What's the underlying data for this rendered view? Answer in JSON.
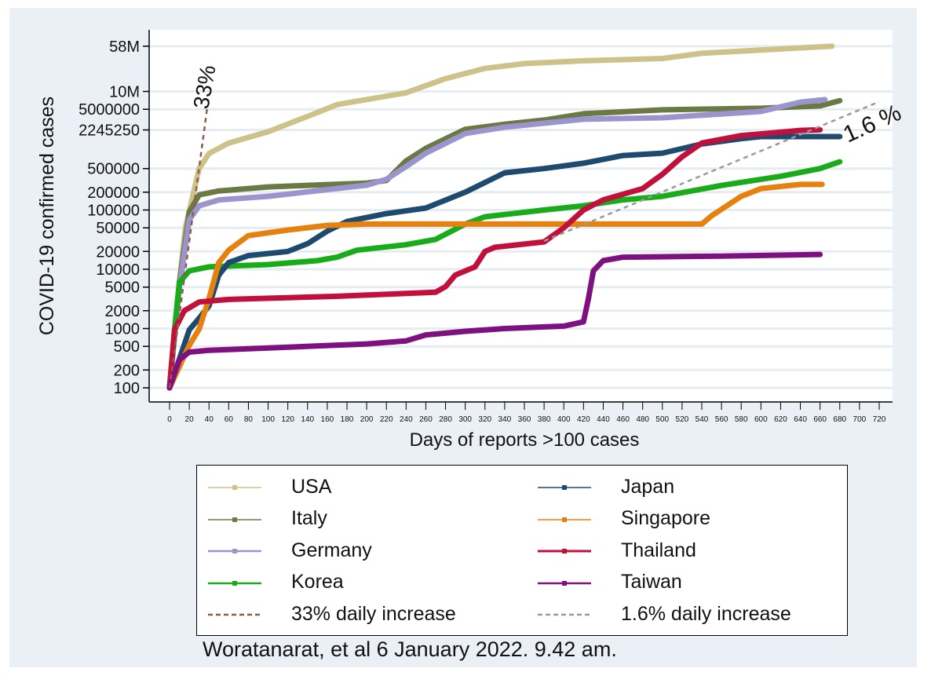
{
  "chart_data": {
    "type": "line",
    "title": "",
    "xlabel": "Days of reports >100 cases",
    "ylabel": "COVID-19 confirmed cases",
    "yscale": "log",
    "xlim": [
      0,
      720
    ],
    "ylim": [
      100,
      58000000
    ],
    "grid": true,
    "legend_position": "bottom",
    "x_ticks": [
      0,
      20,
      40,
      60,
      80,
      100,
      120,
      140,
      160,
      180,
      200,
      220,
      240,
      260,
      280,
      300,
      320,
      340,
      360,
      380,
      400,
      420,
      440,
      460,
      480,
      500,
      520,
      540,
      560,
      580,
      600,
      620,
      640,
      660,
      680,
      700,
      720
    ],
    "y_ticks": [
      {
        "value": 100,
        "label": "100"
      },
      {
        "value": 200,
        "label": "200"
      },
      {
        "value": 500,
        "label": "500"
      },
      {
        "value": 1000,
        "label": "1000"
      },
      {
        "value": 2000,
        "label": "2000"
      },
      {
        "value": 5000,
        "label": "5000"
      },
      {
        "value": 10000,
        "label": "10000"
      },
      {
        "value": 20000,
        "label": "20000"
      },
      {
        "value": 50000,
        "label": "50000"
      },
      {
        "value": 100000,
        "label": "100000"
      },
      {
        "value": 200000,
        "label": "200000"
      },
      {
        "value": 500000,
        "label": "500000"
      },
      {
        "value": 2245250,
        "label": "2245250"
      },
      {
        "value": 5000000,
        "label": "5000000"
      },
      {
        "value": 10000000,
        "label": "10M"
      },
      {
        "value": 58000000,
        "label": "58M"
      }
    ],
    "series": [
      {
        "name": "USA",
        "color": "#cdc28a",
        "dashed": false,
        "x": [
          0,
          8,
          16,
          30,
          40,
          60,
          100,
          140,
          170,
          200,
          240,
          280,
          320,
          360,
          420,
          500,
          540,
          600,
          672
        ],
        "y": [
          100,
          3000,
          50000,
          500000,
          900000,
          1350000,
          2100000,
          3800000,
          6000000,
          7300000,
          9500000,
          16500000,
          24500000,
          29500000,
          33000000,
          36000000,
          44000000,
          50000000,
          58000000
        ]
      },
      {
        "name": "Italy",
        "color": "#6b7a45",
        "dashed": false,
        "x": [
          0,
          10,
          20,
          30,
          50,
          100,
          200,
          220,
          240,
          260,
          300,
          340,
          380,
          420,
          500,
          600,
          660,
          680
        ],
        "y": [
          100,
          6000,
          93000,
          180000,
          210000,
          245000,
          285000,
          315000,
          675000,
          1100000,
          2300000,
          2800000,
          3300000,
          4200000,
          4900000,
          5200000,
          5700000,
          7000000
        ]
      },
      {
        "name": "Germany",
        "color": "#9c94cc",
        "dashed": false,
        "x": [
          0,
          10,
          20,
          30,
          50,
          100,
          200,
          220,
          240,
          260,
          300,
          340,
          420,
          500,
          600,
          640,
          665
        ],
        "y": [
          100,
          5000,
          68000,
          118000,
          148000,
          170000,
          262000,
          330000,
          540000,
          910000,
          1950000,
          2500000,
          3400000,
          3600000,
          4600000,
          6600000,
          7300000
        ]
      },
      {
        "name": "Korea",
        "color": "#1aab1a",
        "dashed": false,
        "x": [
          0,
          5,
          10,
          20,
          40,
          100,
          150,
          170,
          190,
          240,
          270,
          300,
          320,
          380,
          420,
          460,
          500,
          560,
          620,
          660,
          680
        ],
        "y": [
          100,
          950,
          6000,
          9400,
          11000,
          12000,
          14000,
          16000,
          21000,
          26000,
          32000,
          58000,
          77000,
          100000,
          118000,
          148000,
          170000,
          260000,
          370000,
          500000,
          650000
        ]
      },
      {
        "name": "Japan",
        "color": "#1f4a70",
        "dashed": false,
        "x": [
          0,
          20,
          30,
          40,
          50,
          60,
          80,
          120,
          140,
          160,
          180,
          220,
          260,
          300,
          340,
          380,
          420,
          460,
          500,
          540,
          580,
          600,
          680
        ],
        "y": [
          100,
          950,
          1500,
          2400,
          8000,
          13000,
          17000,
          20000,
          27000,
          44000,
          64000,
          87000,
          108000,
          200000,
          425000,
          500000,
          615000,
          830000,
          910000,
          1300000,
          1600000,
          1730000,
          1730000
        ]
      },
      {
        "name": "Singapore",
        "color": "#e5820f",
        "dashed": false,
        "x": [
          0,
          20,
          30,
          40,
          50,
          60,
          80,
          120,
          160,
          200,
          540,
          550,
          580,
          600,
          640,
          662
        ],
        "y": [
          100,
          520,
          980,
          3200,
          13000,
          21000,
          37000,
          46000,
          55000,
          58000,
          58000,
          80000,
          170000,
          230000,
          270000,
          270000
        ]
      },
      {
        "name": "Thailand",
        "color": "#c0103c",
        "dashed": false,
        "x": [
          0,
          5,
          15,
          30,
          60,
          170,
          270,
          280,
          290,
          310,
          320,
          330,
          380,
          400,
          420,
          440,
          480,
          500,
          520,
          540,
          580,
          640,
          660
        ],
        "y": [
          100,
          950,
          2000,
          2800,
          3100,
          3500,
          4100,
          5100,
          8000,
          11000,
          20000,
          23500,
          29000,
          50000,
          100000,
          148000,
          230000,
          400000,
          790000,
          1350000,
          1800000,
          2200000,
          2250000
        ]
      },
      {
        "name": "Taiwan",
        "color": "#7f107f",
        "dashed": false,
        "x": [
          0,
          10,
          20,
          40,
          100,
          200,
          240,
          260,
          300,
          340,
          400,
          420,
          425,
          430,
          440,
          460,
          560,
          660
        ],
        "y": [
          100,
          300,
          400,
          430,
          470,
          550,
          620,
          780,
          900,
          1000,
          1100,
          1300,
          3200,
          9400,
          14000,
          16000,
          16700,
          17800
        ]
      },
      {
        "name": "33% daily increase",
        "color": "#8b5e4a",
        "dashed": true,
        "x": [
          0,
          38
        ],
        "y": [
          100,
          5000000
        ]
      },
      {
        "name": "1.6% daily increase",
        "color": "#9a9a9a",
        "dashed": true,
        "x": [
          380,
          720
        ],
        "y": [
          30000,
          6700000
        ]
      }
    ],
    "annotations": [
      {
        "text": "33%",
        "x": 32,
        "y": 20000000
      },
      {
        "text": "1.6 %",
        "x": 700,
        "y": 2800000
      }
    ]
  },
  "caption": "Woratanarat, et al 6 January 2022. 9.42 am."
}
